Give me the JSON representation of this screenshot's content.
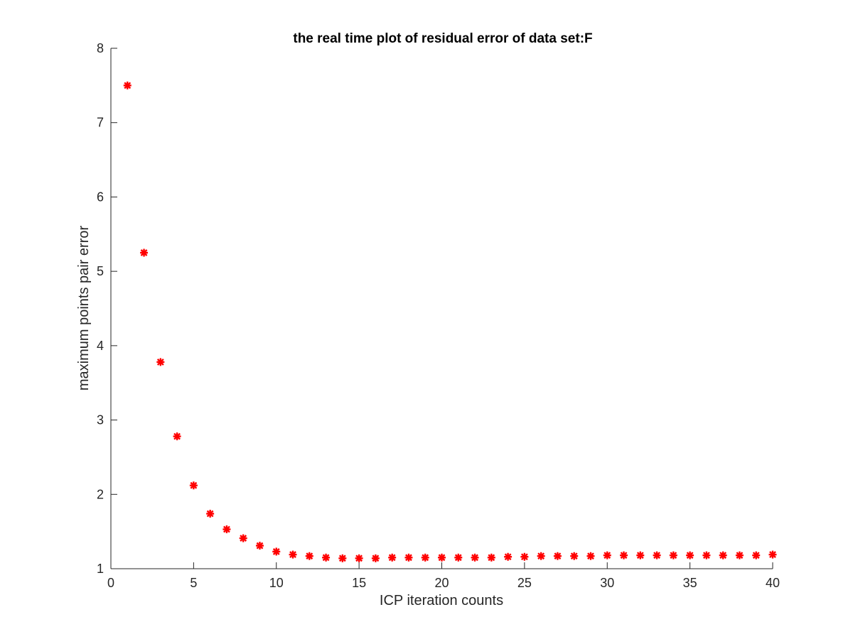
{
  "chart_data": {
    "type": "scatter",
    "title": "the real time plot of residual error of data set:F",
    "xlabel": "ICP iteration counts",
    "ylabel": "maximum points pair error",
    "xlim": [
      0,
      40
    ],
    "ylim": [
      1,
      8
    ],
    "xticks": [
      0,
      5,
      10,
      15,
      20,
      25,
      30,
      35,
      40
    ],
    "yticks": [
      1,
      2,
      3,
      4,
      5,
      6,
      7,
      8
    ],
    "grid": false,
    "legend": "none",
    "marker": "asterisk",
    "color": "#ff0000",
    "series": [
      {
        "x": [
          1,
          2,
          3,
          4,
          5,
          6,
          7,
          8,
          9,
          10,
          11,
          12,
          13,
          14,
          15,
          16,
          17,
          18,
          19,
          20,
          21,
          22,
          23,
          24,
          25,
          26,
          27,
          28,
          29,
          30,
          31,
          32,
          33,
          34,
          35,
          36,
          37,
          38,
          39,
          40
        ],
        "y": [
          7.5,
          5.25,
          3.78,
          2.78,
          2.12,
          1.74,
          1.53,
          1.41,
          1.31,
          1.23,
          1.19,
          1.17,
          1.15,
          1.14,
          1.14,
          1.14,
          1.15,
          1.15,
          1.15,
          1.15,
          1.15,
          1.15,
          1.15,
          1.16,
          1.16,
          1.17,
          1.17,
          1.17,
          1.17,
          1.18,
          1.18,
          1.18,
          1.18,
          1.18,
          1.18,
          1.18,
          1.18,
          1.18,
          1.18,
          1.19
        ]
      }
    ]
  }
}
